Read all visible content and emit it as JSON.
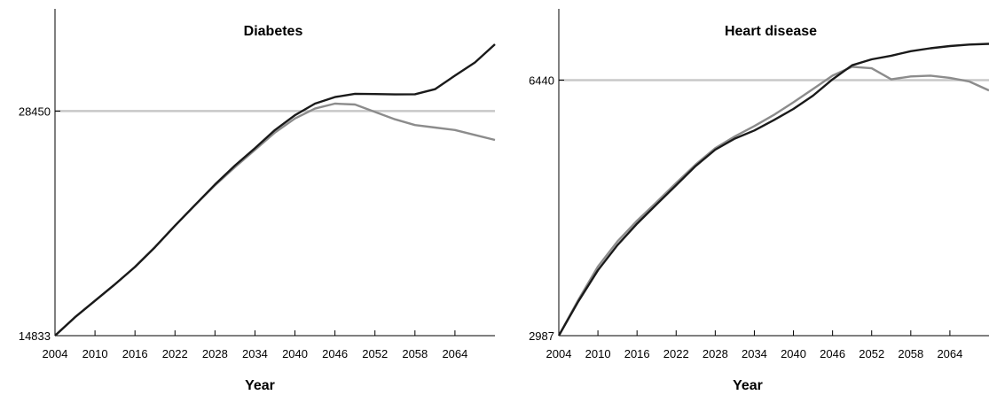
{
  "chart_data": [
    {
      "type": "line",
      "title": "Diabetes",
      "xlabel": "Year",
      "ylabel": "",
      "xlim": [
        2004,
        2070
      ],
      "ylim": [
        14833,
        32500
      ],
      "x_ticks": [
        2004,
        2010,
        2016,
        2022,
        2028,
        2034,
        2040,
        2046,
        2052,
        2058,
        2064
      ],
      "y_ticks": [
        14833,
        28450
      ],
      "reference_line": 28450,
      "grid": false,
      "colors": {
        "series_1": "#1a1a1a",
        "series_2": "#8c8c8c",
        "reference_line": "#c8c8c8"
      },
      "series": [
        {
          "x": [
            2004,
            2007,
            2010,
            2013,
            2016,
            2019,
            2022,
            2025,
            2028,
            2031,
            2034,
            2037,
            2040,
            2043,
            2046,
            2049,
            2052,
            2055,
            2058,
            2061,
            2064,
            2067,
            2070
          ],
          "values": [
            14833,
            15950,
            16950,
            17950,
            19000,
            20200,
            21500,
            22750,
            24000,
            25150,
            26200,
            27300,
            28200,
            28900,
            29300,
            29500,
            29480,
            29460,
            29470,
            29780,
            30600,
            31400,
            32500
          ]
        },
        {
          "x": [
            2004,
            2007,
            2010,
            2013,
            2016,
            2019,
            2022,
            2025,
            2028,
            2031,
            2034,
            2037,
            2040,
            2043,
            2046,
            2049,
            2052,
            2055,
            2058,
            2061,
            2064,
            2067,
            2070
          ],
          "values": [
            14833,
            15950,
            16950,
            17950,
            19000,
            20200,
            21500,
            22750,
            23950,
            25050,
            26100,
            27150,
            28000,
            28600,
            28900,
            28850,
            28400,
            27950,
            27600,
            27450,
            27300,
            27000,
            26700
          ]
        }
      ]
    },
    {
      "type": "line",
      "title": "Heart disease",
      "xlabel": "Year",
      "ylabel": "",
      "xlim": [
        2004,
        2070
      ],
      "ylim": [
        2987,
        6900
      ],
      "x_ticks": [
        2004,
        2010,
        2016,
        2022,
        2028,
        2034,
        2040,
        2046,
        2052,
        2058,
        2064
      ],
      "y_ticks": [
        2987,
        6440
      ],
      "reference_line": 6440,
      "grid": false,
      "colors": {
        "series_1": "#1a1a1a",
        "series_2": "#8c8c8c",
        "reference_line": "#c8c8c8"
      },
      "series": [
        {
          "x": [
            2004,
            2007,
            2010,
            2013,
            2016,
            2019,
            2022,
            2025,
            2028,
            2031,
            2034,
            2037,
            2040,
            2043,
            2046,
            2049,
            2052,
            2055,
            2058,
            2061,
            2064,
            2067,
            2070
          ],
          "values": [
            2987,
            3450,
            3870,
            4210,
            4500,
            4760,
            5020,
            5280,
            5500,
            5650,
            5760,
            5900,
            6050,
            6230,
            6450,
            6640,
            6720,
            6770,
            6830,
            6870,
            6900,
            6920,
            6930
          ]
        },
        {
          "x": [
            2004,
            2007,
            2010,
            2013,
            2016,
            2019,
            2022,
            2025,
            2028,
            2031,
            2034,
            2037,
            2040,
            2043,
            2046,
            2049,
            2052,
            2055,
            2058,
            2061,
            2064,
            2067,
            2070
          ],
          "values": [
            2987,
            3470,
            3920,
            4260,
            4540,
            4790,
            5050,
            5300,
            5520,
            5680,
            5820,
            5970,
            6140,
            6320,
            6500,
            6620,
            6600,
            6450,
            6490,
            6500,
            6470,
            6420,
            6300
          ]
        }
      ]
    }
  ]
}
